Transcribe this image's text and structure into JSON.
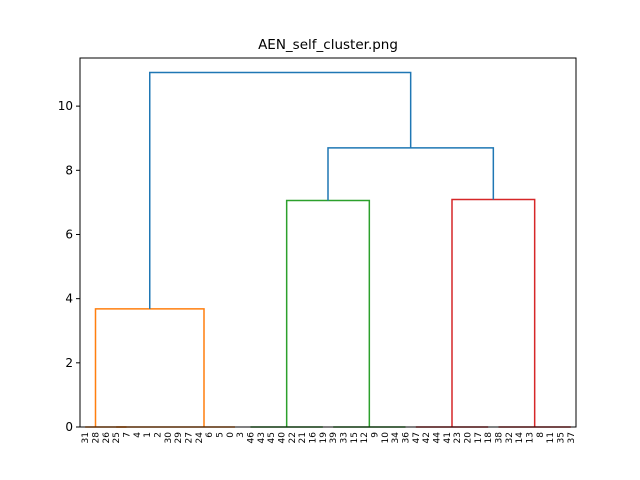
{
  "chart_data": {
    "type": "dendrogram",
    "title": "AEN_self_cluster.png",
    "xlabel": "",
    "ylabel": "",
    "ylim": [
      0,
      11.5
    ],
    "yticks": [
      0,
      2,
      4,
      6,
      8,
      10
    ],
    "grid": false,
    "leaves": [
      "31",
      "28",
      "26",
      "25",
      "7",
      "4",
      "1",
      "2",
      "30",
      "29",
      "27",
      "24",
      "6",
      "5",
      "0",
      "3",
      "46",
      "43",
      "45",
      "40",
      "22",
      "21",
      "16",
      "19",
      "39",
      "33",
      "15",
      "12",
      "9",
      "10",
      "34",
      "36",
      "47",
      "42",
      "44",
      "41",
      "23",
      "20",
      "17",
      "18",
      "38",
      "32",
      "14",
      "13",
      "8",
      "11",
      "35",
      "37"
    ],
    "leaf_spacing": 10,
    "links": [
      {
        "x1": 5,
        "x2": 150,
        "y_left": 0,
        "y_right": 0,
        "height": 0,
        "color": "#ff7f0e"
      },
      {
        "x1": 45,
        "x2": 35,
        "y_left": 0,
        "y_right": 0,
        "height": 0,
        "color": "#ff7f0e"
      },
      {
        "x1": 165,
        "x2": 235,
        "y_left": 0,
        "y_right": 0,
        "height": 0,
        "color": "#2ca02c"
      },
      {
        "x1": 245,
        "x2": 315,
        "y_left": 0,
        "y_right": 0,
        "height": 0,
        "color": "#2ca02c"
      },
      {
        "x1": 325,
        "x2": 395,
        "y_left": 0,
        "y_right": 0,
        "height": 0,
        "color": "#d62728"
      },
      {
        "x1": 405,
        "x2": 475,
        "y_left": 0,
        "y_right": 0,
        "height": 0,
        "color": "#d62728"
      },
      {
        "x1": 15,
        "x2": 120,
        "y_left": 0,
        "y_right": 0,
        "height": 3.68,
        "color": "#ff7f0e"
      },
      {
        "x1": 200,
        "x2": 280,
        "y_left": 0,
        "y_right": 0,
        "height": 7.06,
        "color": "#2ca02c"
      },
      {
        "x1": 360,
        "x2": 440,
        "y_left": 0,
        "y_right": 0,
        "height": 7.09,
        "color": "#d62728"
      },
      {
        "x1": 240,
        "x2": 400,
        "y_left": 7.06,
        "y_right": 7.09,
        "height": 8.7,
        "color": "#1f77b4"
      },
      {
        "x1": 67.5,
        "x2": 320,
        "y_left": 3.68,
        "y_right": 8.7,
        "height": 11.05,
        "color": "#1f77b4"
      }
    ]
  }
}
